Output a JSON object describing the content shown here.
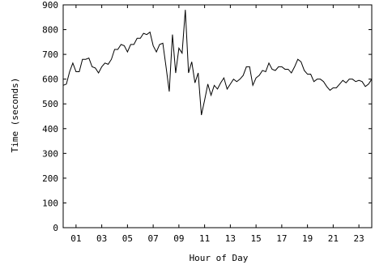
{
  "chart_data": {
    "type": "line",
    "xlabel": "Hour of Day",
    "ylabel": "Time (seconds)",
    "xlim": [
      0,
      24
    ],
    "ylim": [
      0,
      900
    ],
    "x_ticks": [
      {
        "value": 1,
        "label": "01"
      },
      {
        "value": 3,
        "label": "03"
      },
      {
        "value": 5,
        "label": "05"
      },
      {
        "value": 7,
        "label": "07"
      },
      {
        "value": 9,
        "label": "09"
      },
      {
        "value": 11,
        "label": "11"
      },
      {
        "value": 13,
        "label": "13"
      },
      {
        "value": 15,
        "label": "15"
      },
      {
        "value": 17,
        "label": "17"
      },
      {
        "value": 19,
        "label": "19"
      },
      {
        "value": 21,
        "label": "21"
      },
      {
        "value": 23,
        "label": "23"
      }
    ],
    "y_ticks": [
      {
        "value": 0,
        "label": "0"
      },
      {
        "value": 100,
        "label": "100"
      },
      {
        "value": 200,
        "label": "200"
      },
      {
        "value": 300,
        "label": "300"
      },
      {
        "value": 400,
        "label": "400"
      },
      {
        "value": 500,
        "label": "500"
      },
      {
        "value": 600,
        "label": "600"
      },
      {
        "value": 700,
        "label": "700"
      },
      {
        "value": 800,
        "label": "800"
      },
      {
        "value": 900,
        "label": "900"
      }
    ],
    "grid": false,
    "legend": "none",
    "series": [
      {
        "color": "#000000",
        "x": [
          0.0,
          0.25,
          0.5,
          0.75,
          1.0,
          1.25,
          1.5,
          1.75,
          2.0,
          2.25,
          2.5,
          2.75,
          3.0,
          3.25,
          3.5,
          3.75,
          4.0,
          4.25,
          4.5,
          4.75,
          5.0,
          5.25,
          5.5,
          5.75,
          6.0,
          6.25,
          6.5,
          6.75,
          7.0,
          7.25,
          7.5,
          7.75,
          8.0,
          8.25,
          8.5,
          8.75,
          9.0,
          9.25,
          9.5,
          9.75,
          10.0,
          10.25,
          10.5,
          10.75,
          11.0,
          11.25,
          11.5,
          11.75,
          12.0,
          12.25,
          12.5,
          12.75,
          13.0,
          13.25,
          13.5,
          13.75,
          14.0,
          14.25,
          14.5,
          14.75,
          15.0,
          15.25,
          15.5,
          15.75,
          16.0,
          16.25,
          16.5,
          16.75,
          17.0,
          17.25,
          17.5,
          17.75,
          18.0,
          18.25,
          18.5,
          18.75,
          19.0,
          19.25,
          19.5,
          19.75,
          20.0,
          20.25,
          20.5,
          20.75,
          21.0,
          21.25,
          21.5,
          21.75,
          22.0,
          22.25,
          22.5,
          22.75,
          23.0,
          23.25,
          23.5,
          23.75,
          24.0
        ],
        "y": [
          575,
          580,
          630,
          665,
          630,
          630,
          680,
          680,
          685,
          650,
          645,
          625,
          650,
          665,
          660,
          680,
          720,
          720,
          740,
          735,
          710,
          740,
          740,
          765,
          765,
          785,
          780,
          790,
          735,
          710,
          740,
          745,
          650,
          550,
          780,
          625,
          725,
          705,
          880,
          625,
          670,
          585,
          625,
          455,
          515,
          580,
          535,
          575,
          560,
          585,
          605,
          560,
          580,
          600,
          590,
          600,
          615,
          650,
          650,
          575,
          605,
          615,
          635,
          630,
          665,
          640,
          635,
          650,
          650,
          640,
          640,
          625,
          650,
          680,
          670,
          635,
          620,
          620,
          590,
          600,
          600,
          590,
          570,
          555,
          565,
          565,
          580,
          595,
          585,
          600,
          600,
          590,
          595,
          590,
          570,
          580,
          600
        ]
      }
    ]
  }
}
